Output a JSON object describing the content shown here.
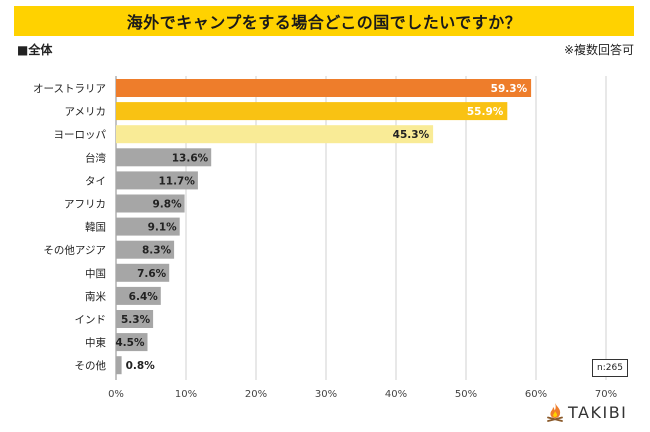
{
  "title": "海外でキャンプをする場合どこの国でしたいですか？",
  "subtitle": "■全体",
  "note": "※複数回答可",
  "sample_size": "n:265",
  "brand": {
    "name": "TAKIBI",
    "logo_icon": "campfire-icon"
  },
  "colors": {
    "title_bg": "#ffd200",
    "first": "#ee7d2b",
    "second": "#f9c213",
    "third": "#f9eb96",
    "rest": "#a6a6a6"
  },
  "chart_data": {
    "type": "bar",
    "orientation": "horizontal",
    "categories": [
      "オーストラリア",
      "アメリカ",
      "ヨーロッパ",
      "台湾",
      "タイ",
      "アフリカ",
      "韓国",
      "その他アジア",
      "中国",
      "南米",
      "インド",
      "中東",
      "その他"
    ],
    "values": [
      59.3,
      55.9,
      45.3,
      13.6,
      11.7,
      9.8,
      9.1,
      8.3,
      7.6,
      6.4,
      5.3,
      4.5,
      0.8
    ],
    "value_labels": [
      "59.3%",
      "55.9%",
      "45.3%",
      "13.6%",
      "11.7%",
      "9.8%",
      "9.1%",
      "8.3%",
      "7.6%",
      "6.4%",
      "5.3%",
      "4.5%",
      "0.8%"
    ],
    "x_ticks": [
      "0%",
      "10%",
      "20%",
      "30%",
      "40%",
      "50%",
      "60%",
      "70%"
    ],
    "xlim": [
      0,
      70
    ],
    "grid": true,
    "title": "海外でキャンプをする場合どこの国でしたいですか？",
    "xlabel": "",
    "ylabel": ""
  }
}
